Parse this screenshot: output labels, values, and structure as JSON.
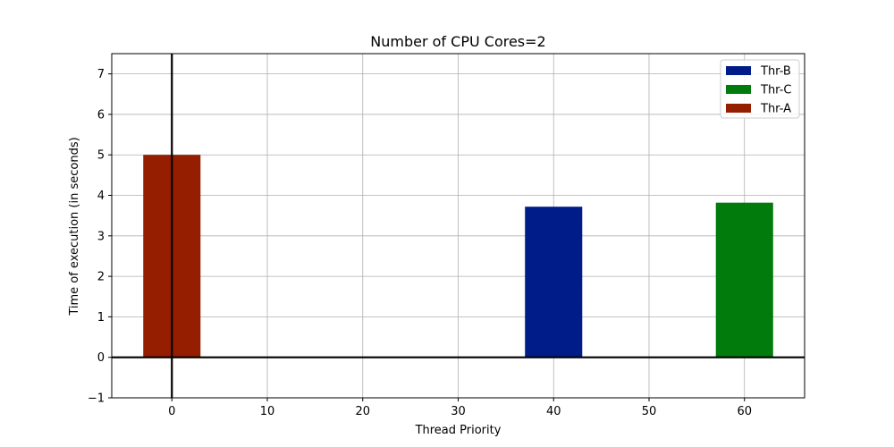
{
  "chart_data": {
    "type": "bar",
    "title": "Number of CPU Cores=2",
    "xlabel": "Thread Priority",
    "ylabel": "Time of execution (in seconds)",
    "xlim": [
      -6.3,
      66.3
    ],
    "ylim": [
      -1,
      7.5
    ],
    "xticks": [
      0,
      10,
      20,
      30,
      40,
      50,
      60
    ],
    "yticks": [
      -1,
      0,
      1,
      2,
      3,
      4,
      5,
      6,
      7
    ],
    "grid": true,
    "axis_lines": {
      "x_at": 0,
      "y_at": 0
    },
    "bar_width": 6,
    "series": [
      {
        "name": "Thr-B",
        "color": "#001c88",
        "x": 40,
        "value": 3.72
      },
      {
        "name": "Thr-C",
        "color": "#007b0c",
        "x": 60,
        "value": 3.82
      },
      {
        "name": "Thr-A",
        "color": "#951e00",
        "x": 0,
        "value": 5.0
      }
    ],
    "legend_position": "top-right"
  }
}
